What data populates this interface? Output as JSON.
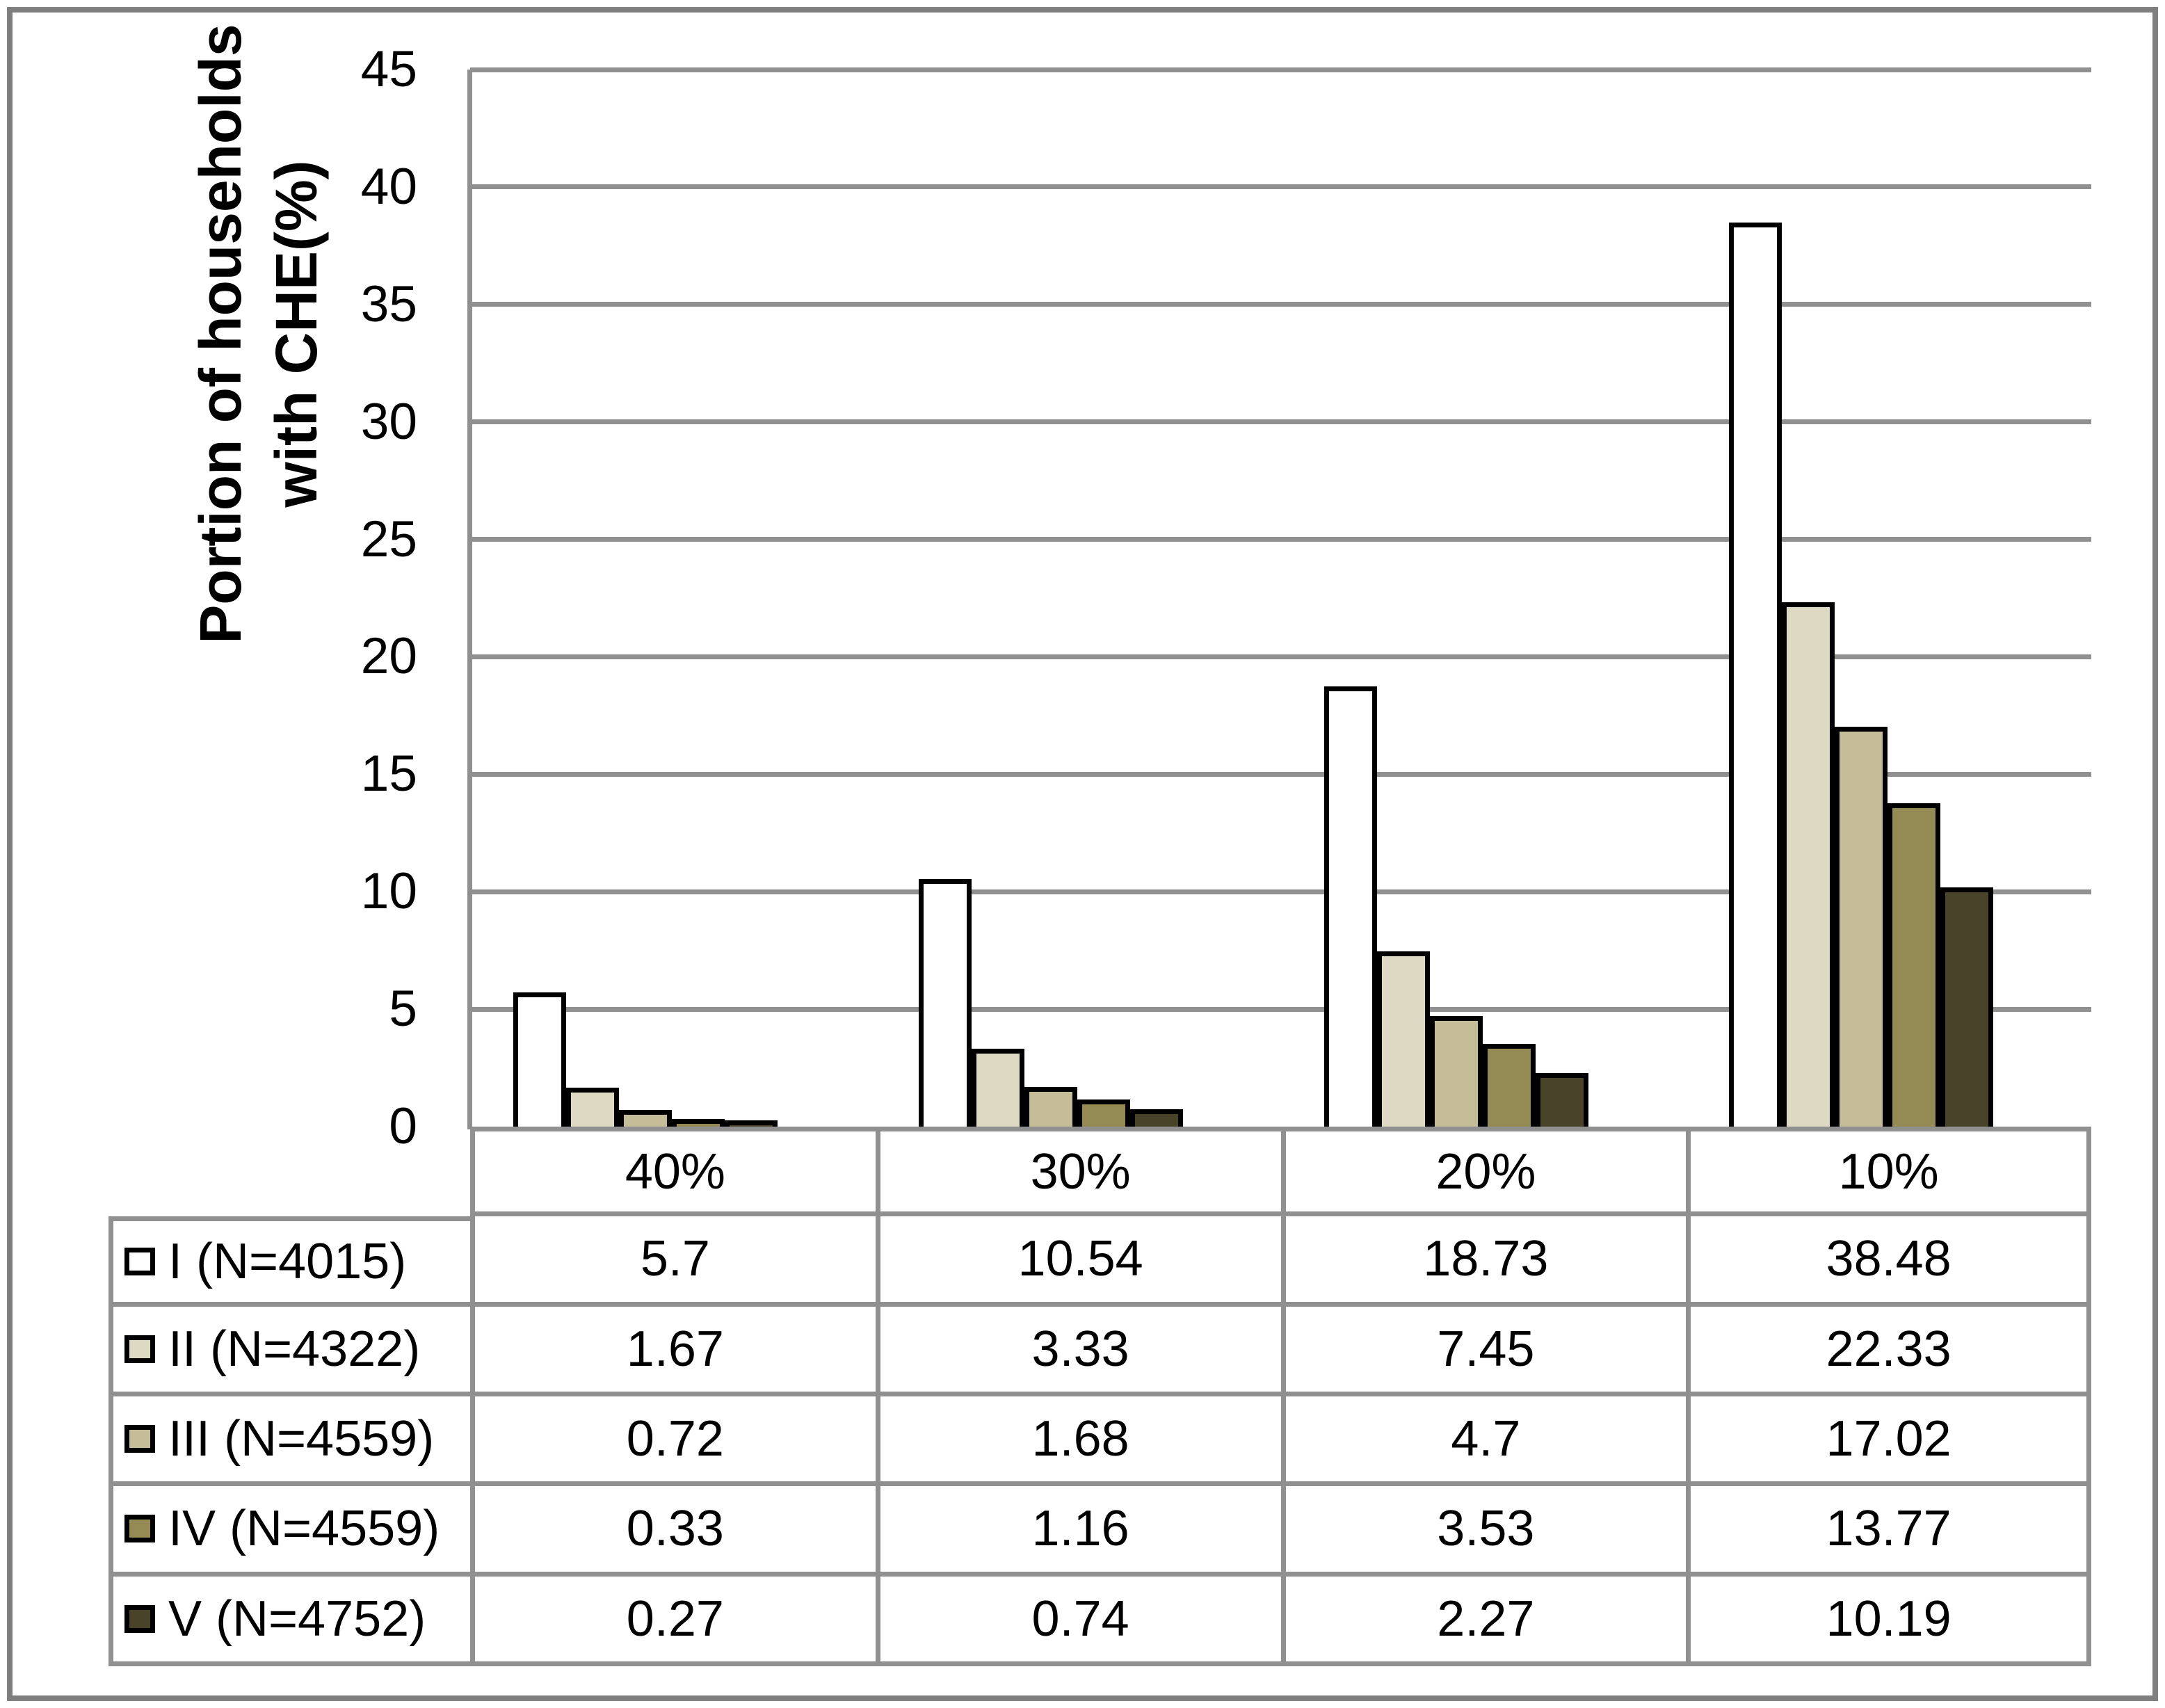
{
  "y_axis": {
    "title_line1": "Portion of households",
    "title_line2": "with CHE(%)",
    "tick_min": 0,
    "tick_max": 45,
    "tick_step": 5
  },
  "chart_data": {
    "type": "bar",
    "title": "",
    "ylabel": "Portion of households with CHE(%)",
    "xlabel": "",
    "categories": [
      "40%",
      "30%",
      "20%",
      "10%"
    ],
    "series": [
      {
        "name": "I (N=4015)",
        "color": "#FFFFFF",
        "values": [
          5.7,
          10.54,
          18.73,
          38.48
        ]
      },
      {
        "name": "II (N=4322)",
        "color": "#DDD9C3",
        "values": [
          1.67,
          3.33,
          7.45,
          22.33
        ]
      },
      {
        "name": "III (N=4559)",
        "color": "#C4BD97",
        "values": [
          0.72,
          1.68,
          4.7,
          17.02
        ]
      },
      {
        "name": "IV (N=4559)",
        "color": "#948A54",
        "values": [
          0.33,
          1.16,
          3.53,
          13.77
        ]
      },
      {
        "name": "V (N=4752)",
        "color": "#494429",
        "values": [
          0.27,
          0.74,
          2.27,
          10.19
        ]
      }
    ],
    "ylim": [
      0,
      45
    ],
    "grid": true,
    "legend_position": "table-left",
    "colors": {
      "grid_line": "#909090",
      "axis_line": "#909090",
      "outer_frame": "#7f7f7f",
      "bar_border": "#000000"
    }
  }
}
